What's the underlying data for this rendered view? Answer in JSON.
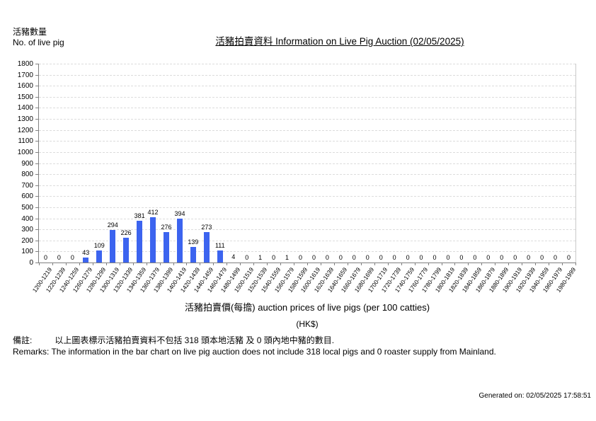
{
  "chart_data": {
    "type": "bar",
    "title": "活豬拍賣資料 Information on Live Pig Auction (02/05/2025)",
    "ylabel_zh": "活豬數量",
    "ylabel_en": "No. of live pig",
    "xlabel": "活豬拍賣價(每擔) auction prices of live pigs (per 100 catties)",
    "xlabel_unit": "(HK$)",
    "categories": [
      "1200-1219",
      "1220-1239",
      "1240-1259",
      "1260-1279",
      "1280-1299",
      "1300-1319",
      "1320-1339",
      "1340-1359",
      "1360-1379",
      "1380-1399",
      "1400-1419",
      "1420-1439",
      "1440-1459",
      "1460-1479",
      "1480-1499",
      "1500-1519",
      "1520-1539",
      "1540-1559",
      "1560-1579",
      "1580-1599",
      "1600-1619",
      "1620-1639",
      "1640-1659",
      "1660-1679",
      "1680-1699",
      "1700-1719",
      "1720-1739",
      "1740-1759",
      "1760-1779",
      "1780-1799",
      "1800-1819",
      "1820-1839",
      "1840-1859",
      "1860-1879",
      "1880-1899",
      "1900-1919",
      "1920-1939",
      "1940-1959",
      "1960-1979",
      "1980-1999"
    ],
    "values": [
      0,
      0,
      0,
      43,
      109,
      294,
      226,
      381,
      412,
      276,
      394,
      139,
      273,
      111,
      4,
      0,
      1,
      0,
      1,
      0,
      0,
      0,
      0,
      0,
      0,
      0,
      0,
      0,
      0,
      0,
      0,
      0,
      0,
      0,
      0,
      0,
      0,
      0,
      0,
      0
    ],
    "ylim": [
      0,
      1800
    ],
    "ytick_step": 100,
    "grid": "horizontal-dashed",
    "legend": "none",
    "bar_color": "#3c64ef"
  },
  "remarks": {
    "zh_label": "備註:",
    "zh_text": "以上圖表標示活豬拍賣資料不包括 318 頭本地活豬 及 0 頭內地中豬的數目.",
    "en": "Remarks: The information in the bar chart on live pig auction does not include 318 local pigs and 0 roaster supply from Mainland."
  },
  "footer": {
    "generated": "Generated on: 02/05/2025 17:58:51"
  }
}
